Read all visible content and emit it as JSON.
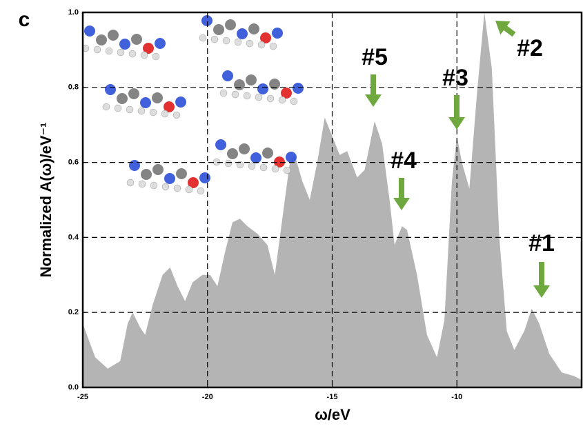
{
  "chart_data": {
    "type": "area",
    "panel_label": "c",
    "x_label": "ω/eV",
    "y_label": "Normalized A(ω)/eV⁻¹",
    "x": [
      -25,
      -24.5,
      -24,
      -23.5,
      -23.2,
      -23,
      -22.7,
      -22.5,
      -22.2,
      -21.8,
      -21.5,
      -21.2,
      -20.9,
      -20.6,
      -20.2,
      -19.9,
      -19.6,
      -19.3,
      -19,
      -18.7,
      -18.4,
      -18,
      -17.6,
      -17.3,
      -17,
      -16.7,
      -16.5,
      -16.2,
      -15.9,
      -15.6,
      -15.3,
      -15,
      -14.7,
      -14.4,
      -14,
      -13.7,
      -13.3,
      -13,
      -12.7,
      -12.5,
      -12.2,
      -12,
      -11.6,
      -11.2,
      -10.8,
      -10.5,
      -10.2,
      -10,
      -9.8,
      -9.5,
      -9.2,
      -8.9,
      -8.6,
      -8.3,
      -8,
      -7.7,
      -7.3,
      -7,
      -6.7,
      -6.3,
      -5.8,
      -5.3,
      -5
    ],
    "series": [
      {
        "color": "#b4b4b4",
        "values": [
          0.17,
          0.08,
          0.05,
          0.07,
          0.17,
          0.2,
          0.16,
          0.14,
          0.22,
          0.3,
          0.32,
          0.27,
          0.23,
          0.28,
          0.3,
          0.3,
          0.27,
          0.36,
          0.44,
          0.45,
          0.43,
          0.41,
          0.38,
          0.3,
          0.45,
          0.6,
          0.62,
          0.55,
          0.5,
          0.6,
          0.72,
          0.67,
          0.62,
          0.63,
          0.56,
          0.58,
          0.71,
          0.65,
          0.5,
          0.38,
          0.43,
          0.42,
          0.3,
          0.14,
          0.08,
          0.18,
          0.55,
          0.67,
          0.6,
          0.53,
          0.78,
          1.0,
          0.85,
          0.4,
          0.15,
          0.1,
          0.15,
          0.21,
          0.17,
          0.09,
          0.04,
          0.03,
          0.02
        ]
      }
    ],
    "xlim": [
      -25,
      -5
    ],
    "ylim": [
      0,
      1.0
    ],
    "xticks": [
      -25,
      -20,
      -15,
      -10
    ],
    "yticks": [
      {
        "value": 0,
        "label": "0.0"
      },
      0.2,
      0.4,
      0.6,
      0.8,
      {
        "value": 1,
        "label": "1.0"
      }
    ],
    "grid": true,
    "annotations": [
      "#5",
      "#3",
      "#4",
      "#1",
      "#2"
    ],
    "annotation_color": "#6fa83e"
  }
}
